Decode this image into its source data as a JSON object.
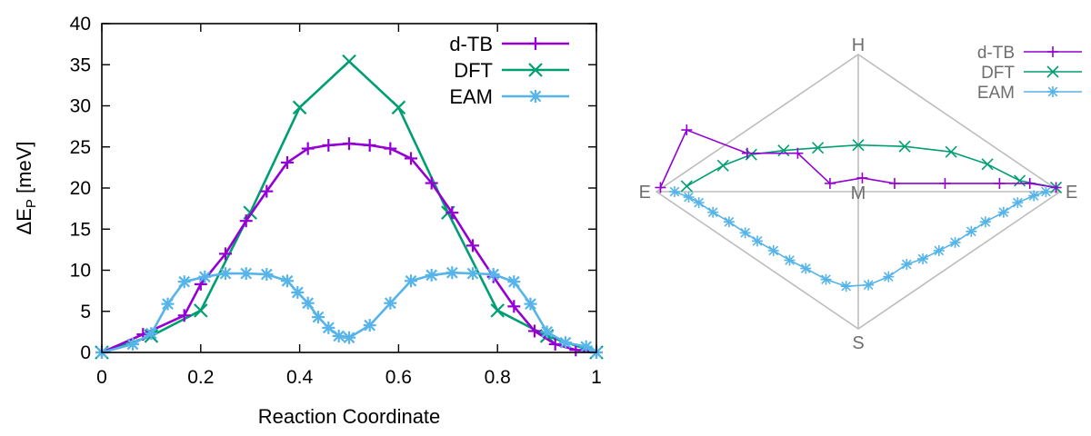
{
  "colors": {
    "dtb": "#9400d3",
    "dft": "#009e73",
    "eam": "#56b4e9",
    "frame": "#000000",
    "diamond": "#bdbdbd"
  },
  "chart_data": [
    {
      "type": "line",
      "title": "",
      "xlabel": "Reaction Coordinate",
      "ylabel_main": "ΔE",
      "ylabel_sub": "P",
      "ylabel_unit": " [meV]",
      "xlim": [
        0,
        1
      ],
      "ylim": [
        0,
        40
      ],
      "xticks": [
        0,
        0.2,
        0.4,
        0.6,
        0.8,
        1
      ],
      "xtick_labels": [
        "0",
        "0.2",
        "0.4",
        "0.6",
        "0.8",
        "1"
      ],
      "yticks": [
        0,
        5,
        10,
        15,
        20,
        25,
        30,
        35,
        40
      ],
      "ytick_labels": [
        "0",
        "5",
        "10",
        "15",
        "20",
        "25",
        "30",
        "35",
        "40"
      ],
      "grid": false,
      "legend": "top-right",
      "series": [
        {
          "name": "d-TB",
          "marker": "plus",
          "x": [
            0,
            0.0833,
            0.1667,
            0.2,
            0.25,
            0.2917,
            0.3333,
            0.375,
            0.4167,
            0.4583,
            0.5,
            0.5417,
            0.5833,
            0.625,
            0.6667,
            0.7083,
            0.75,
            0.7917,
            0.8333,
            0.875,
            0.9167,
            0.9583,
            1
          ],
          "values": [
            0,
            2.2,
            4.5,
            8.3,
            12.0,
            16.0,
            19.6,
            23.1,
            24.8,
            25.2,
            25.4,
            25.2,
            24.8,
            23.6,
            20.6,
            17.0,
            13.0,
            9.2,
            5.6,
            2.6,
            1.0,
            0.3,
            0
          ]
        },
        {
          "name": "DFT",
          "marker": "cross",
          "x": [
            0,
            0.1,
            0.2,
            0.3,
            0.4,
            0.5,
            0.6,
            0.7,
            0.8,
            0.9,
            1
          ],
          "values": [
            0,
            2.0,
            5.1,
            17.0,
            29.8,
            35.4,
            29.8,
            17.0,
            5.1,
            2.0,
            0
          ]
        },
        {
          "name": "EAM",
          "marker": "star",
          "x": [
            0,
            0.0625,
            0.1,
            0.1333,
            0.1667,
            0.2083,
            0.25,
            0.2917,
            0.3333,
            0.375,
            0.3958,
            0.4167,
            0.4375,
            0.4583,
            0.4792,
            0.5,
            0.5417,
            0.5833,
            0.625,
            0.6667,
            0.7083,
            0.75,
            0.7917,
            0.8333,
            0.8667,
            0.9,
            0.9375,
            0.9792,
            1
          ],
          "values": [
            0,
            1.0,
            2.3,
            5.9,
            8.6,
            9.2,
            9.6,
            9.6,
            9.5,
            8.7,
            7.3,
            6.0,
            4.3,
            3.0,
            2.0,
            1.8,
            3.3,
            6.0,
            8.7,
            9.4,
            9.7,
            9.6,
            9.5,
            8.6,
            5.9,
            2.5,
            1.2,
            0.7,
            0
          ]
        }
      ]
    },
    {
      "type": "diamond-projection",
      "vertex_labels": {
        "top": "H",
        "bottom": "S",
        "left": "E",
        "right": "E",
        "center": "M"
      },
      "legend": "top-right",
      "x_range": [
        -1,
        1
      ],
      "y_range": [
        -1,
        1
      ],
      "series": [
        {
          "name": "d-TB",
          "marker": "plus",
          "points": [
            [
              -0.98,
              0.03
            ],
            [
              -0.85,
              0.45
            ],
            [
              -0.55,
              0.28
            ],
            [
              -0.3,
              0.28
            ],
            [
              -0.14,
              0.06
            ],
            [
              0.02,
              0.1
            ],
            [
              0.18,
              0.06
            ],
            [
              0.43,
              0.06
            ],
            [
              0.7,
              0.06
            ],
            [
              0.85,
              0.06
            ],
            [
              0.98,
              0.03
            ]
          ]
        },
        {
          "name": "DFT",
          "marker": "cross",
          "points": [
            [
              -0.85,
              0.04
            ],
            [
              -0.67,
              0.19
            ],
            [
              -0.53,
              0.27
            ],
            [
              -0.37,
              0.3
            ],
            [
              -0.2,
              0.32
            ],
            [
              0.0,
              0.34
            ],
            [
              0.23,
              0.33
            ],
            [
              0.46,
              0.29
            ],
            [
              0.64,
              0.2
            ],
            [
              0.8,
              0.08
            ],
            [
              0.98,
              0.03
            ]
          ]
        },
        {
          "name": "EAM",
          "marker": "star",
          "points": [
            [
              -0.91,
              0.0
            ],
            [
              -0.84,
              -0.04
            ],
            [
              -0.79,
              -0.08
            ],
            [
              -0.72,
              -0.15
            ],
            [
              -0.64,
              -0.22
            ],
            [
              -0.56,
              -0.3
            ],
            [
              -0.5,
              -0.36
            ],
            [
              -0.42,
              -0.43
            ],
            [
              -0.34,
              -0.5
            ],
            [
              -0.26,
              -0.56
            ],
            [
              -0.16,
              -0.64
            ],
            [
              -0.06,
              -0.69
            ],
            [
              0.05,
              -0.68
            ],
            [
              0.15,
              -0.62
            ],
            [
              0.24,
              -0.53
            ],
            [
              0.32,
              -0.49
            ],
            [
              0.4,
              -0.43
            ],
            [
              0.48,
              -0.37
            ],
            [
              0.56,
              -0.29
            ],
            [
              0.63,
              -0.22
            ],
            [
              0.72,
              -0.15
            ],
            [
              0.79,
              -0.08
            ],
            [
              0.87,
              -0.03
            ],
            [
              0.93,
              0.0
            ]
          ]
        }
      ]
    }
  ]
}
